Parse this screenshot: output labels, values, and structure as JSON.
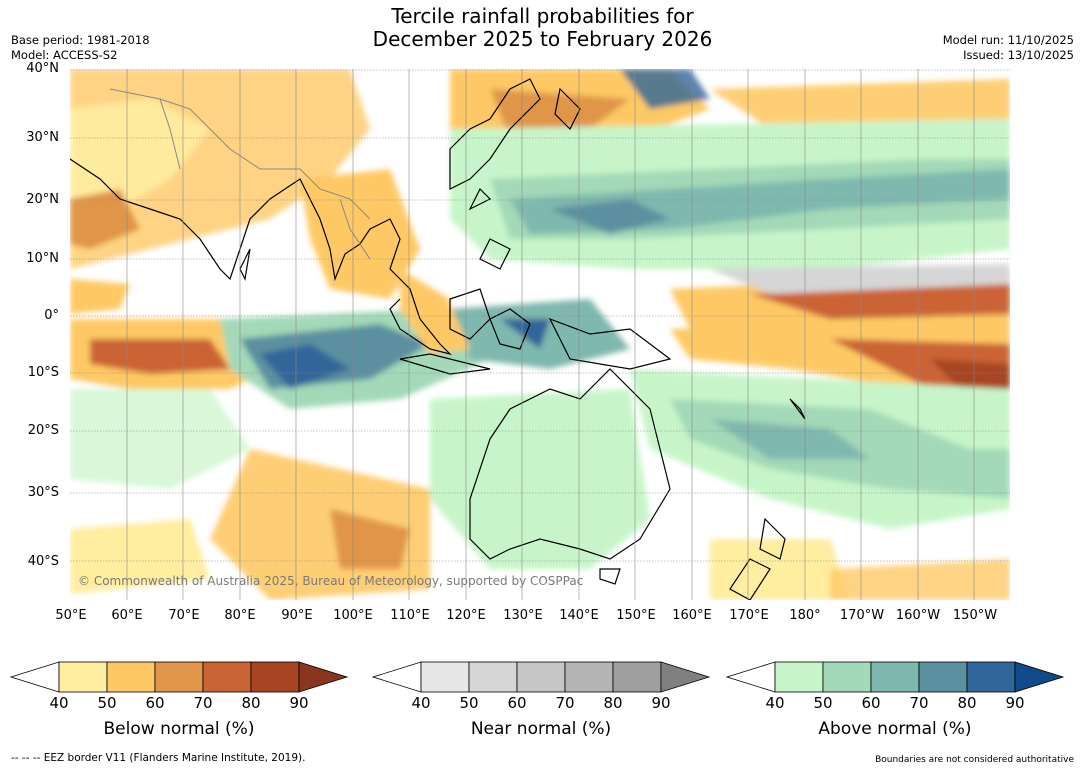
{
  "title_line1": "Tercile rainfall probabilities for",
  "title_line2": "December 2025 to February 2026",
  "base_period": "Base period: 1981-2018",
  "model": "Model: ACCESS-S2",
  "model_run": "Model run: 11/10/2025",
  "issued": "Issued: 13/10/2025",
  "copyright": "© Commonwealth of Australia 2025, Bureau of Meteorology, supported by COSPPac",
  "lat_labels": [
    "40°N",
    "30°N",
    "20°N",
    "10°N",
    "0°",
    "10°S",
    "20°S",
    "30°S",
    "40°S"
  ],
  "lon_labels": [
    "50°E",
    "60°E",
    "70°E",
    "80°E",
    "90°E",
    "100°E",
    "110°E",
    "120°E",
    "130°E",
    "140°E",
    "150°E",
    "160°E",
    "170°E",
    "180°",
    "170°W",
    "160°W",
    "150°W"
  ],
  "colorbars": [
    {
      "label": "Below normal (%)",
      "ticks": [
        "40",
        "50",
        "60",
        "70",
        "80",
        "90"
      ],
      "colors": [
        "#ffffff",
        "#ffeda0",
        "#fec965",
        "#e0954a",
        "#cb6434",
        "#a84423",
        "#8a3520"
      ]
    },
    {
      "label": "Near normal (%)",
      "ticks": [
        "40",
        "50",
        "60",
        "70",
        "80",
        "90"
      ],
      "colors": [
        "#ffffff",
        "#e6e6e6",
        "#d6d6d6",
        "#c6c6c6",
        "#b4b4b4",
        "#9f9f9f",
        "#808080"
      ]
    },
    {
      "label": "Above normal (%)",
      "ticks": [
        "40",
        "50",
        "60",
        "70",
        "80",
        "90"
      ],
      "colors": [
        "#ffffff",
        "#c7f5c9",
        "#a3d9b8",
        "#7fb8ae",
        "#5b90a0",
        "#30669a",
        "#104a88"
      ]
    }
  ],
  "footer_left": "--  --  -- EEZ border V11 (Flanders Marine Institute, 2019).",
  "footer_right": "Boundaries are not considered authoritative"
}
